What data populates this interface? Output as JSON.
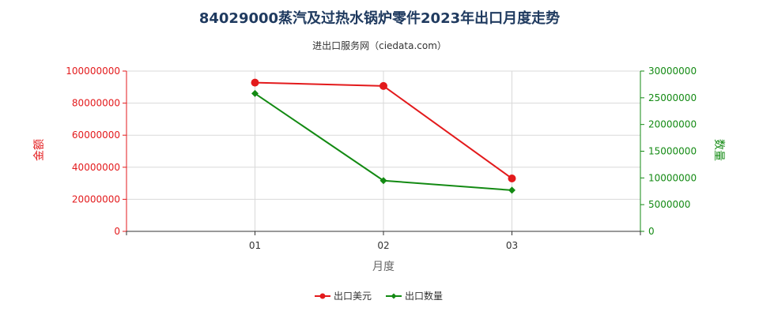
{
  "chart_data": {
    "type": "line",
    "title": "84029000蒸汽及过热水锅炉零件2023年出口月度走势",
    "subtitle": "进出口服务网（ciedata.com）",
    "xlabel": "月度",
    "ylabel_left": "金额",
    "ylabel_right": "数量",
    "categories": [
      "01",
      "02",
      "03"
    ],
    "ylim_left": [
      0,
      100000000
    ],
    "ylim_right": [
      0,
      30000000
    ],
    "left_ticks": [
      "0",
      "20000000",
      "40000000",
      "60000000",
      "80000000",
      "100000000"
    ],
    "right_ticks": [
      "0",
      "5000000",
      "10000000",
      "15000000",
      "20000000",
      "25000000",
      "30000000"
    ],
    "grid": true,
    "legend_position": "bottom",
    "series": [
      {
        "name": "出口美元",
        "axis": "left",
        "color": "#e31a1c",
        "marker": "circle",
        "values": [
          92800000,
          90700000,
          33000000
        ]
      },
      {
        "name": "出口数量",
        "axis": "right",
        "color": "#138a13",
        "marker": "diamond",
        "values": [
          25800000,
          9500000,
          7700000
        ]
      }
    ]
  }
}
